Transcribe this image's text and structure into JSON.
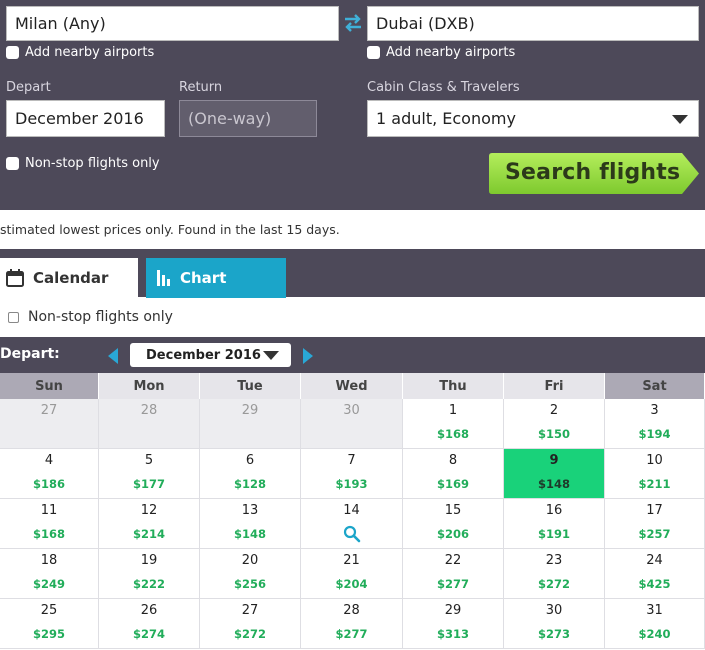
{
  "search": {
    "from": "Milan (Any)",
    "to": "Dubai (DXB)",
    "nearby_from_label": "Add nearby airports",
    "nearby_to_label": "Add nearby airports",
    "depart_label": "Depart",
    "depart_value": "December 2016",
    "return_label": "Return",
    "return_value": "(One-way)",
    "cabin_label": "Cabin Class & Travelers",
    "cabin_value": "1 adult, Economy",
    "nonstop_label": "Non-stop flights only",
    "search_button": "Search flights",
    "button_color": "#8fd63a"
  },
  "note": "stimated lowest prices only. Found in the last 15 days.",
  "tabs": {
    "calendar": "Calendar",
    "chart": "Chart"
  },
  "filter": {
    "nonstop_label": "Non-stop flights only"
  },
  "calendar": {
    "depart_label": "Depart:",
    "month": "December 2016",
    "weekdays": [
      "Sun",
      "Mon",
      "Tue",
      "Wed",
      "Thu",
      "Fri",
      "Sat"
    ],
    "weeks": [
      [
        {
          "day": "27",
          "price": "",
          "other": true
        },
        {
          "day": "28",
          "price": "",
          "other": true
        },
        {
          "day": "29",
          "price": "",
          "other": true
        },
        {
          "day": "30",
          "price": "",
          "other": true
        },
        {
          "day": "1",
          "price": "$168"
        },
        {
          "day": "2",
          "price": "$150"
        },
        {
          "day": "3",
          "price": "$194"
        }
      ],
      [
        {
          "day": "4",
          "price": "$186"
        },
        {
          "day": "5",
          "price": "$177"
        },
        {
          "day": "6",
          "price": "$128"
        },
        {
          "day": "7",
          "price": "$193"
        },
        {
          "day": "8",
          "price": "$169"
        },
        {
          "day": "9",
          "price": "$148",
          "selected": true
        },
        {
          "day": "10",
          "price": "$211"
        }
      ],
      [
        {
          "day": "11",
          "price": "$168"
        },
        {
          "day": "12",
          "price": "$214"
        },
        {
          "day": "13",
          "price": "$148"
        },
        {
          "day": "14",
          "price": "",
          "search": true
        },
        {
          "day": "15",
          "price": "$206"
        },
        {
          "day": "16",
          "price": "$191"
        },
        {
          "day": "17",
          "price": "$257"
        }
      ],
      [
        {
          "day": "18",
          "price": "$249"
        },
        {
          "day": "19",
          "price": "$222"
        },
        {
          "day": "20",
          "price": "$256"
        },
        {
          "day": "21",
          "price": "$204"
        },
        {
          "day": "22",
          "price": "$277"
        },
        {
          "day": "23",
          "price": "$272"
        },
        {
          "day": "24",
          "price": "$425"
        }
      ],
      [
        {
          "day": "25",
          "price": "$295"
        },
        {
          "day": "26",
          "price": "$274"
        },
        {
          "day": "27",
          "price": "$272"
        },
        {
          "day": "28",
          "price": "$277"
        },
        {
          "day": "29",
          "price": "$313"
        },
        {
          "day": "30",
          "price": "$273"
        },
        {
          "day": "31",
          "price": "$240"
        }
      ]
    ]
  }
}
